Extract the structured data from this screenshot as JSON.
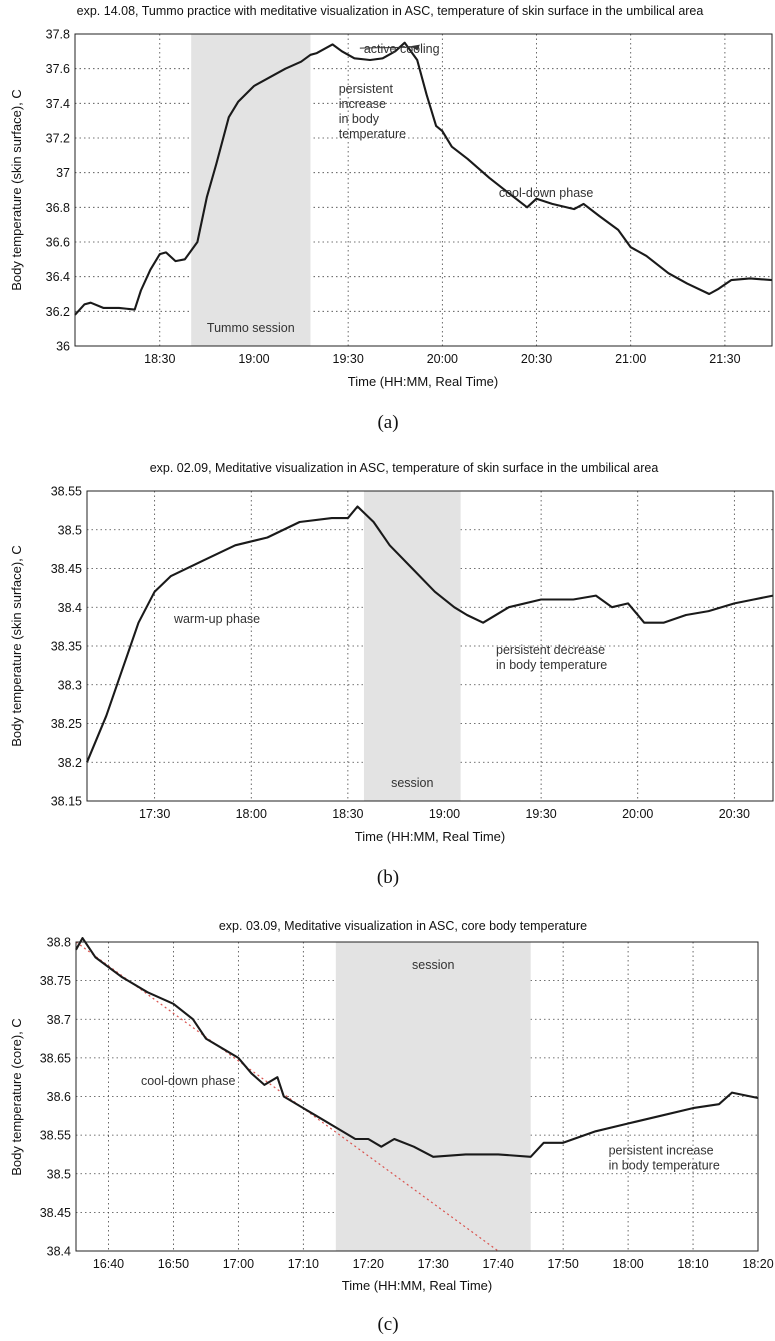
{
  "chart_data": [
    {
      "type": "line",
      "title": "exp. 14.08, Tummo practice with meditative visualization in ASC, temperature of skin surface in the umbilical area",
      "xlabel": "Time (HH:MM, Real Time)",
      "ylabel": "Body temperature (skin surface), C",
      "caption": "(a)",
      "x_ticks": [
        "18:30",
        "19:00",
        "19:30",
        "20:00",
        "20:30",
        "21:00",
        "21:30"
      ],
      "y_ticks": [
        "36",
        "36.2",
        "36.4",
        "36.6",
        "36.8",
        "37",
        "37.2",
        "37.4",
        "37.6",
        "37.8"
      ],
      "xlim": [
        "18:03",
        "21:45"
      ],
      "ylim": [
        36,
        37.8
      ],
      "grid": true,
      "shaded_regions": [
        {
          "start": "18:40",
          "end": "19:18",
          "label": "Tummo session"
        }
      ],
      "annotations": [
        {
          "text": [
            "active cooling"
          ],
          "x": "19:35",
          "y": 37.69,
          "arrow_to": {
            "x": "19:50",
            "y": 37.73
          }
        },
        {
          "text": [
            "persistent",
            "increase",
            "in body",
            "temperature"
          ],
          "x": "19:27",
          "y": 37.46
        },
        {
          "text": [
            "cool-down phase"
          ],
          "x": "20:18",
          "y": 36.86
        }
      ],
      "series": [
        {
          "points": [
            [
              "18:03",
              36.18
            ],
            [
              "18:06",
              36.24
            ],
            [
              "18:08",
              36.25
            ],
            [
              "18:12",
              36.22
            ],
            [
              "18:17",
              36.22
            ],
            [
              "18:22",
              36.21
            ],
            [
              "18:24",
              36.32
            ],
            [
              "18:27",
              36.44
            ],
            [
              "18:30",
              36.53
            ],
            [
              "18:32",
              36.54
            ],
            [
              "18:35",
              36.49
            ],
            [
              "18:38",
              36.5
            ],
            [
              "18:42",
              36.6
            ],
            [
              "18:45",
              36.86
            ],
            [
              "18:48",
              37.05
            ],
            [
              "18:52",
              37.32
            ],
            [
              "18:55",
              37.41
            ],
            [
              "19:00",
              37.5
            ],
            [
              "19:05",
              37.55
            ],
            [
              "19:10",
              37.6
            ],
            [
              "19:15",
              37.64
            ],
            [
              "19:18",
              37.68
            ],
            [
              "19:20",
              37.69
            ],
            [
              "19:25",
              37.74
            ],
            [
              "19:28",
              37.7
            ],
            [
              "19:32",
              37.66
            ],
            [
              "19:37",
              37.65
            ],
            [
              "19:41",
              37.66
            ],
            [
              "19:45",
              37.7
            ],
            [
              "19:48",
              37.75
            ],
            [
              "19:52",
              37.65
            ],
            [
              "19:55",
              37.45
            ],
            [
              "19:58",
              37.27
            ],
            [
              "20:00",
              37.24
            ],
            [
              "20:03",
              37.15
            ],
            [
              "20:08",
              37.08
            ],
            [
              "20:15",
              36.97
            ],
            [
              "20:22",
              36.87
            ],
            [
              "20:27",
              36.8
            ],
            [
              "20:30",
              36.85
            ],
            [
              "20:35",
              36.82
            ],
            [
              "20:42",
              36.79
            ],
            [
              "20:45",
              36.82
            ],
            [
              "20:50",
              36.75
            ],
            [
              "20:56",
              36.67
            ],
            [
              "21:00",
              36.57
            ],
            [
              "21:05",
              36.52
            ],
            [
              "21:12",
              36.42
            ],
            [
              "21:18",
              36.36
            ],
            [
              "21:25",
              36.3
            ],
            [
              "21:28",
              36.33
            ],
            [
              "21:32",
              36.38
            ],
            [
              "21:38",
              36.39
            ],
            [
              "21:45",
              36.38
            ]
          ]
        }
      ]
    },
    {
      "type": "line",
      "title": "exp. 02.09, Meditative visualization in ASC, temperature of skin surface in the umbilical area",
      "xlabel": "Time (HH:MM, Real Time)",
      "ylabel": "Body temperature (skin surface), C",
      "caption": "(b)",
      "x_ticks": [
        "17:30",
        "18:00",
        "18:30",
        "19:00",
        "19:30",
        "20:00",
        "20:30"
      ],
      "y_ticks": [
        "38.15",
        "38.2",
        "38.25",
        "38.3",
        "38.35",
        "38.4",
        "38.45",
        "38.5",
        "38.55"
      ],
      "xlim": [
        "17:09",
        "20:42"
      ],
      "ylim": [
        38.15,
        38.55
      ],
      "grid": true,
      "shaded_regions": [
        {
          "start": "18:35",
          "end": "19:05",
          "label": "session"
        }
      ],
      "annotations": [
        {
          "text": [
            "warm-up phase"
          ],
          "x": "17:36",
          "y": 38.38
        },
        {
          "text": [
            "persistent decrease",
            "in body temperature"
          ],
          "x": "19:16",
          "y": 38.34
        }
      ],
      "series": [
        {
          "points": [
            [
              "17:09",
              38.2
            ],
            [
              "17:15",
              38.26
            ],
            [
              "17:20",
              38.32
            ],
            [
              "17:25",
              38.38
            ],
            [
              "17:30",
              38.42
            ],
            [
              "17:35",
              38.44
            ],
            [
              "17:45",
              38.46
            ],
            [
              "17:55",
              38.48
            ],
            [
              "18:05",
              38.49
            ],
            [
              "18:15",
              38.51
            ],
            [
              "18:25",
              38.515
            ],
            [
              "18:30",
              38.515
            ],
            [
              "18:33",
              38.53
            ],
            [
              "18:38",
              38.51
            ],
            [
              "18:43",
              38.48
            ],
            [
              "18:50",
              38.45
            ],
            [
              "18:57",
              38.42
            ],
            [
              "19:03",
              38.4
            ],
            [
              "19:07",
              38.39
            ],
            [
              "19:12",
              38.38
            ],
            [
              "19:20",
              38.4
            ],
            [
              "19:30",
              38.41
            ],
            [
              "19:40",
              38.41
            ],
            [
              "19:47",
              38.415
            ],
            [
              "19:52",
              38.4
            ],
            [
              "19:57",
              38.405
            ],
            [
              "20:02",
              38.38
            ],
            [
              "20:08",
              38.38
            ],
            [
              "20:15",
              38.39
            ],
            [
              "20:22",
              38.395
            ],
            [
              "20:30",
              38.405
            ],
            [
              "20:36",
              38.41
            ],
            [
              "20:42",
              38.415
            ]
          ]
        }
      ]
    },
    {
      "type": "line",
      "title": "exp. 03.09, Meditative visualization in ASC, core body temperature",
      "xlabel": "Time (HH:MM, Real Time)",
      "ylabel": "Body temperature (core), C",
      "caption": "(c)",
      "x_ticks": [
        "16:40",
        "16:50",
        "17:00",
        "17:10",
        "17:20",
        "17:30",
        "17:40",
        "17:50",
        "18:00",
        "18:10",
        "18:20"
      ],
      "y_ticks": [
        "38.4",
        "38.45",
        "38.5",
        "38.55",
        "38.6",
        "38.65",
        "38.7",
        "38.75",
        "38.8"
      ],
      "xlim": [
        "16:35",
        "18:20"
      ],
      "ylim": [
        38.4,
        38.8
      ],
      "grid": true,
      "shaded_regions": [
        {
          "start": "17:15",
          "end": "17:45",
          "label": "session"
        }
      ],
      "annotations": [
        {
          "text": [
            "cool-down phase"
          ],
          "x": "16:45",
          "y": 38.615
        },
        {
          "text": [
            "persistent increase",
            "in body temperature"
          ],
          "x": "17:57",
          "y": 38.525
        }
      ],
      "trend_line": {
        "from": [
          "16:35",
          38.8
        ],
        "to": [
          "17:40",
          38.4
        ]
      },
      "series": [
        {
          "points": [
            [
              "16:35",
              38.79
            ],
            [
              "16:36",
              38.805
            ],
            [
              "16:38",
              38.78
            ],
            [
              "16:42",
              38.755
            ],
            [
              "16:46",
              38.735
            ],
            [
              "16:50",
              38.72
            ],
            [
              "16:53",
              38.7
            ],
            [
              "16:55",
              38.675
            ],
            [
              "16:58",
              38.66
            ],
            [
              "17:00",
              38.65
            ],
            [
              "17:02",
              38.63
            ],
            [
              "17:04",
              38.615
            ],
            [
              "17:06",
              38.625
            ],
            [
              "17:07",
              38.6
            ],
            [
              "17:10",
              38.585
            ],
            [
              "17:12",
              38.575
            ],
            [
              "17:15",
              38.56
            ],
            [
              "17:18",
              38.545
            ],
            [
              "17:20",
              38.545
            ],
            [
              "17:22",
              38.535
            ],
            [
              "17:24",
              38.545
            ],
            [
              "17:27",
              38.535
            ],
            [
              "17:30",
              38.522
            ],
            [
              "17:35",
              38.525
            ],
            [
              "17:40",
              38.525
            ],
            [
              "17:45",
              38.522
            ],
            [
              "17:47",
              38.54
            ],
            [
              "17:50",
              38.54
            ],
            [
              "17:55",
              38.555
            ],
            [
              "18:00",
              38.565
            ],
            [
              "18:05",
              38.575
            ],
            [
              "18:10",
              38.585
            ],
            [
              "18:14",
              38.59
            ],
            [
              "18:16",
              38.605
            ],
            [
              "18:20",
              38.598
            ]
          ]
        }
      ]
    }
  ]
}
